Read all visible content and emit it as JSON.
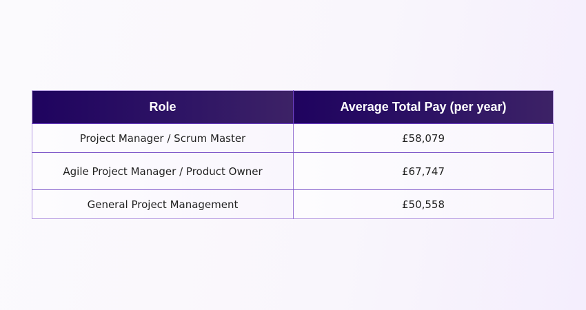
{
  "table": {
    "headers": [
      "Role",
      "Average Total Pay (per year)"
    ],
    "rows": [
      {
        "role": "Project Manager / Scrum Master",
        "pay": "£58,079"
      },
      {
        "role": "Agile Project Manager / Product Owner",
        "pay": "£67,747"
      },
      {
        "role": "General Project Management",
        "pay": "£50,558"
      }
    ]
  },
  "colors": {
    "header_bg_start": "#1f035f",
    "header_bg_end": "#3d2266",
    "border": "#7c55c8",
    "header_text": "#ffffff"
  }
}
